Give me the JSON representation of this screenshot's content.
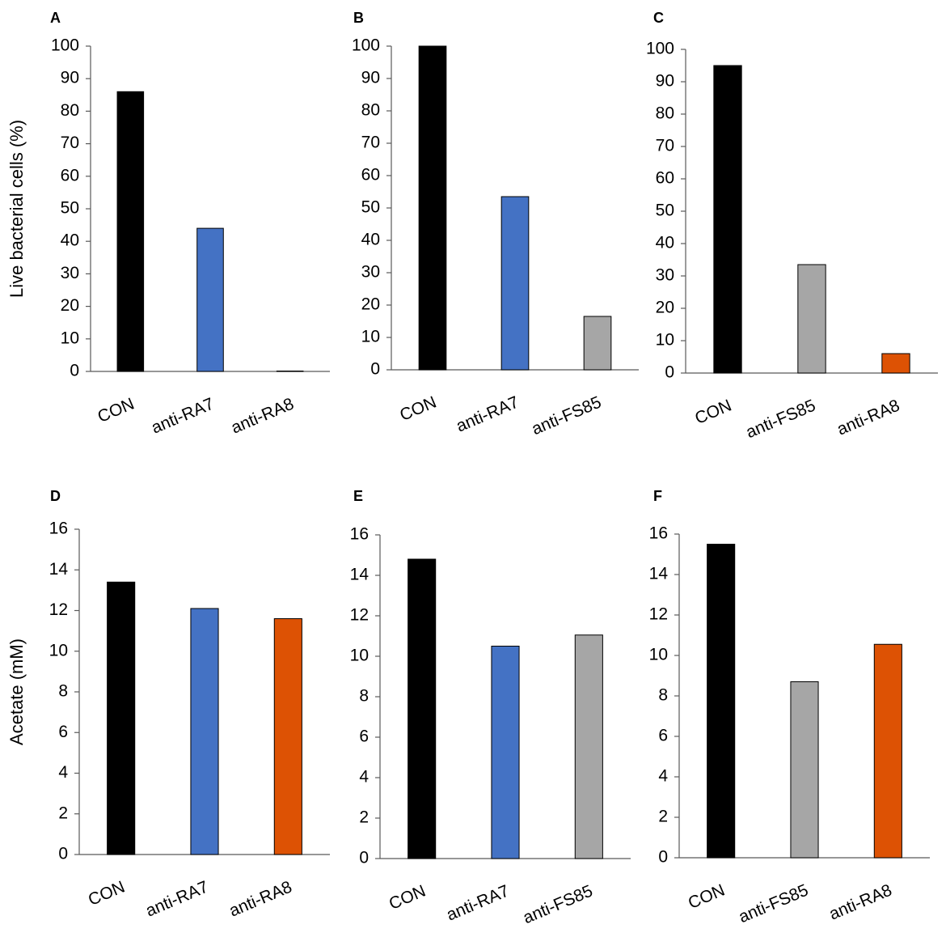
{
  "figure": {
    "panel_labels": [
      "A",
      "B",
      "C",
      "D",
      "E",
      "F"
    ]
  },
  "colors": {
    "CON": "#000000",
    "anti-RA7": "#4472C4",
    "anti-FS85": "#A6A6A6",
    "anti-RA8": "#DD5204",
    "axis": "#595959"
  },
  "chart_data": [
    {
      "panel": "A",
      "type": "bar",
      "title": "",
      "xlabel": "",
      "ylabel": "Live bacterial cells (%)",
      "ylim": [
        0,
        100
      ],
      "yticks": [
        0,
        10,
        20,
        30,
        40,
        50,
        60,
        70,
        80,
        90,
        100
      ],
      "categories": [
        "CON",
        "anti-RA7",
        "anti-RA8"
      ],
      "values": [
        86,
        44,
        0
      ]
    },
    {
      "panel": "B",
      "type": "bar",
      "title": "",
      "xlabel": "",
      "ylabel": "",
      "ylim": [
        0,
        100
      ],
      "yticks": [
        0,
        10,
        20,
        30,
        40,
        50,
        60,
        70,
        80,
        90,
        100
      ],
      "categories": [
        "CON",
        "anti-RA7",
        "anti-FS85"
      ],
      "values": [
        100,
        53.5,
        16.5
      ]
    },
    {
      "panel": "C",
      "type": "bar",
      "title": "",
      "xlabel": "",
      "ylabel": "",
      "ylim": [
        0,
        100
      ],
      "yticks": [
        0,
        10,
        20,
        30,
        40,
        50,
        60,
        70,
        80,
        90,
        100
      ],
      "categories": [
        "CON",
        "anti-FS85",
        "anti-RA8"
      ],
      "values": [
        95,
        33.5,
        6
      ]
    },
    {
      "panel": "D",
      "type": "bar",
      "title": "",
      "xlabel": "",
      "ylabel": "Acetate (mM)",
      "ylim": [
        0,
        16
      ],
      "yticks": [
        0,
        2,
        4,
        6,
        8,
        10,
        12,
        14,
        16
      ],
      "categories": [
        "CON",
        "anti-RA7",
        "anti-RA8"
      ],
      "values": [
        13.4,
        12.1,
        11.6
      ]
    },
    {
      "panel": "E",
      "type": "bar",
      "title": "",
      "xlabel": "",
      "ylabel": "",
      "ylim": [
        0,
        16
      ],
      "yticks": [
        0,
        2,
        4,
        6,
        8,
        10,
        12,
        14,
        16
      ],
      "categories": [
        "CON",
        "anti-RA7",
        "anti-FS85"
      ],
      "values": [
        14.8,
        10.5,
        11.05
      ]
    },
    {
      "panel": "F",
      "type": "bar",
      "title": "",
      "xlabel": "",
      "ylabel": "",
      "ylim": [
        0,
        16
      ],
      "yticks": [
        0,
        2,
        4,
        6,
        8,
        10,
        12,
        14,
        16
      ],
      "categories": [
        "CON",
        "anti-FS85",
        "anti-RA8"
      ],
      "values": [
        15.5,
        8.7,
        10.55
      ]
    }
  ]
}
